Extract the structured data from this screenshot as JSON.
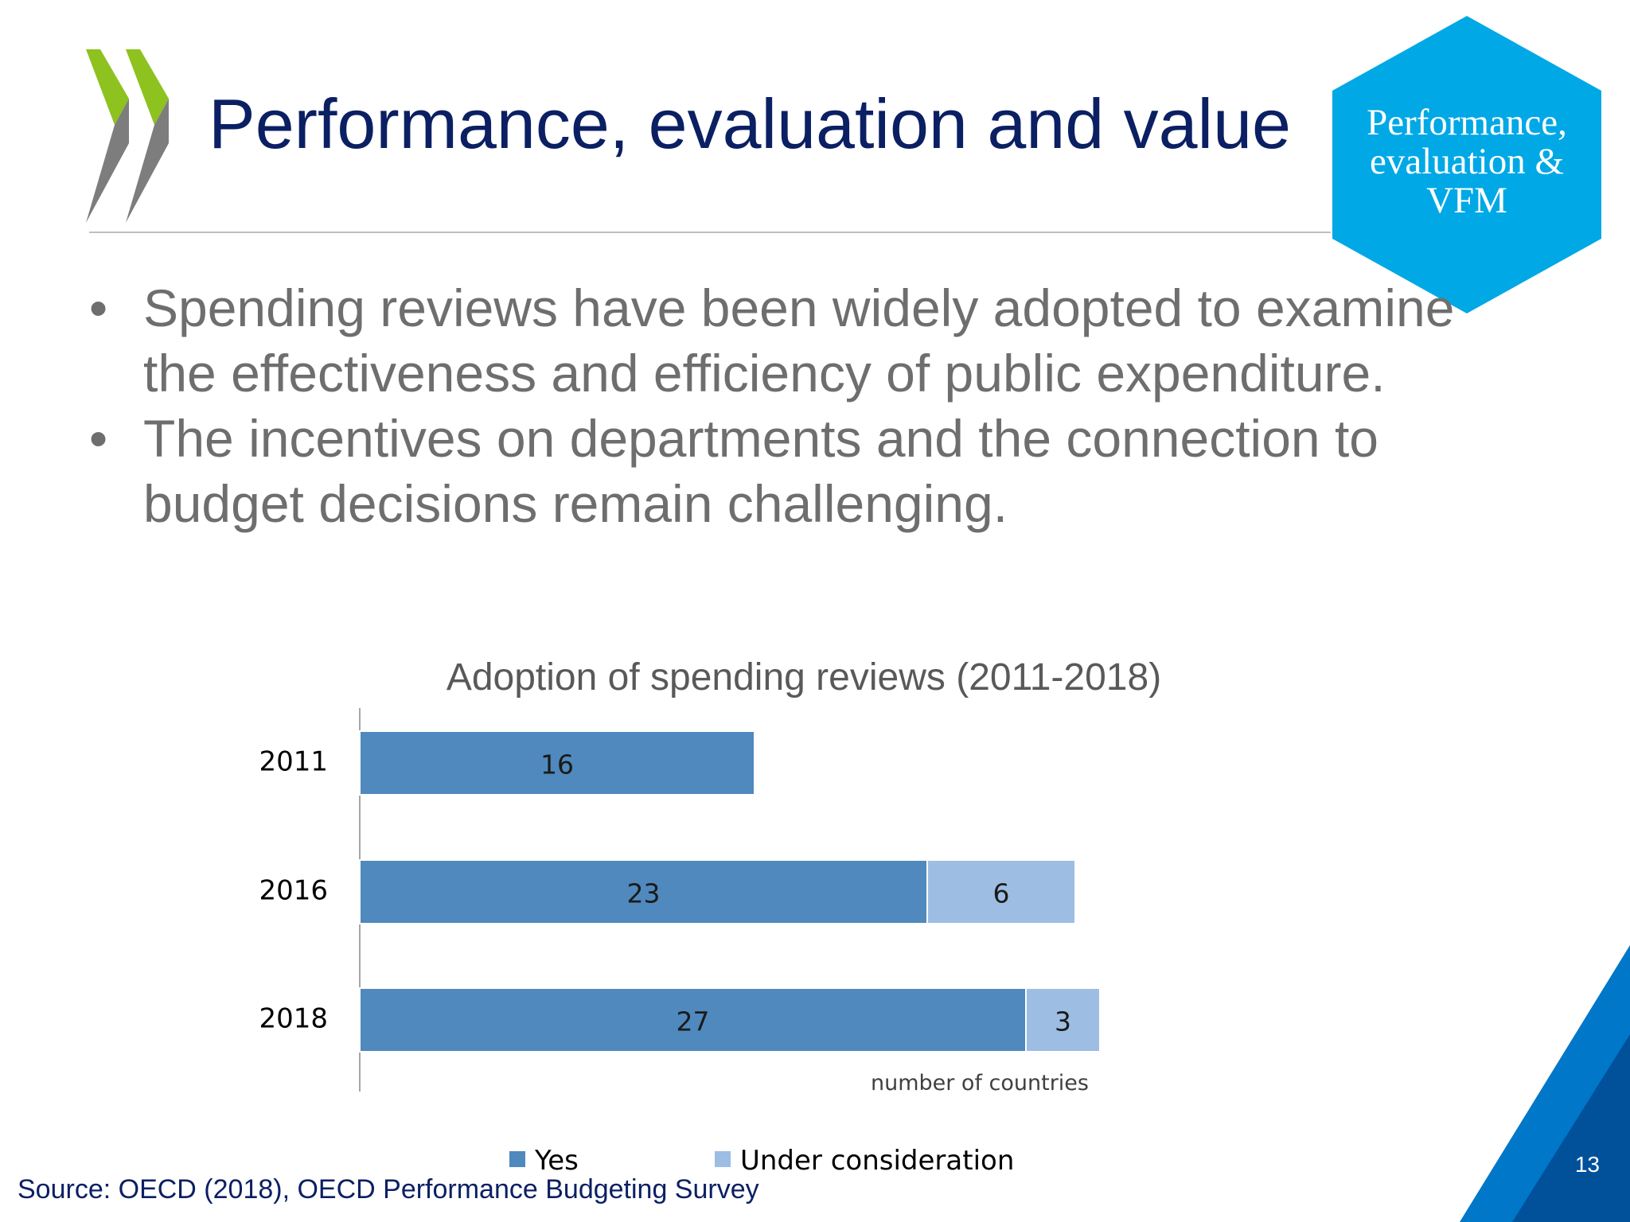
{
  "slide": {
    "title": "Performance, evaluation and value",
    "badge_lines": [
      "Performance,",
      "evaluation &",
      "VFM"
    ],
    "bullets": [
      "Spending reviews have been widely adopted to examine the effectiveness and efficiency of public expenditure.",
      "The incentives on departments and the connection to budget decisions remain challenging."
    ],
    "bullet_marker": "•",
    "source": "Source: OECD (2018), OECD Performance Budgeting Survey",
    "page_number": "13"
  },
  "colors": {
    "title": "#0b1f63",
    "badge": "#00a8e6",
    "logo_green": "#8dc21f",
    "logo_gray": "#7d7d7d",
    "corner_dark": "#00519a",
    "corner_light": "#0077c8"
  },
  "icons": {
    "logo": "oecd-chevrons-logo",
    "badge": "hexagon-badge"
  },
  "chart_data": {
    "type": "bar",
    "orientation": "horizontal",
    "stacked": true,
    "title": "Adoption of spending reviews (2011-2018)",
    "xlabel": "number of countries",
    "categories": [
      "2011",
      "2016",
      "2018"
    ],
    "series": [
      {
        "name": "Yes",
        "values": [
          16,
          23,
          27
        ],
        "color": "#4f89bd"
      },
      {
        "name": "Under consideration",
        "values": [
          null,
          6,
          3
        ],
        "color": "#9dbde3"
      }
    ],
    "xlim": [
      0,
      32
    ],
    "grid": false,
    "legend_position": "bottom"
  }
}
